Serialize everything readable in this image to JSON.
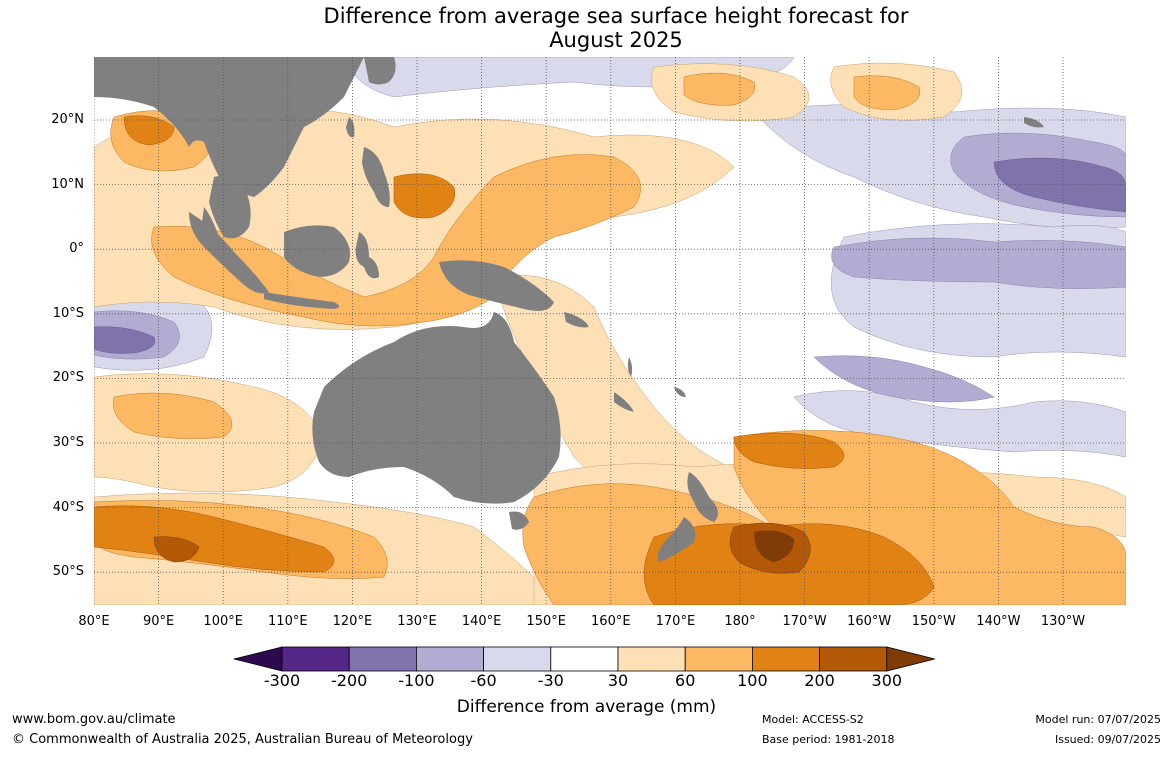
{
  "title_line1": "Difference from average sea surface height forecast for",
  "title_line2": "August 2025",
  "latitudes": [
    "20°N",
    "10°N",
    "0°",
    "10°S",
    "20°S",
    "30°S",
    "40°S",
    "50°S"
  ],
  "longitudes": [
    "80°E",
    "90°E",
    "100°E",
    "110°E",
    "120°E",
    "130°E",
    "140°E",
    "150°E",
    "160°E",
    "170°E",
    "180°",
    "170°W",
    "160°W",
    "150°W",
    "140°W",
    "130°W"
  ],
  "colorbar": {
    "title": "Difference from average (mm)",
    "ticks": [
      "-300",
      "-200",
      "-100",
      "-60",
      "-30",
      "30",
      "60",
      "100",
      "200",
      "300"
    ],
    "colors": [
      "#2d0a4e",
      "#542788",
      "#8073ac",
      "#b2abd2",
      "#d8daeb",
      "#ffffff",
      "#fee0b6",
      "#fdb863",
      "#e08214",
      "#b35806",
      "#7f3b08"
    ]
  },
  "map_data": {
    "type": "filled-contour-map",
    "variable": "Sea surface height anomaly",
    "units": "mm",
    "region": {
      "lon_range": [
        "80°E",
        "130°W"
      ],
      "lat_range": [
        "55°S",
        "30°N"
      ]
    },
    "land_color": "#808080",
    "grid": true,
    "features": [
      {
        "area": "Southern Ocean east of New Zealand (45°S, 175°W)",
        "value_range_mm": [
          200,
          300
        ]
      },
      {
        "area": "Tasman Sea and south-west Pacific",
        "value_range_mm": [
          60,
          200
        ]
      },
      {
        "area": "Maritime Continent / western tropical Pacific",
        "value_range_mm": [
          30,
          200
        ]
      },
      {
        "area": "Southern Indian Ocean band near 45°S",
        "value_range_mm": [
          60,
          200
        ]
      },
      {
        "area": "Central and eastern tropical North Pacific (10°N, 140°W)",
        "value_range_mm": [
          -200,
          -30
        ]
      },
      {
        "area": "Eastern Indian Ocean near 15°S, 85°E",
        "value_range_mm": [
          -200,
          -60
        ]
      },
      {
        "area": "Equatorial central Pacific",
        "value_range_mm": [
          -60,
          -30
        ]
      }
    ]
  },
  "footer": {
    "website": "www.bom.gov.au/climate",
    "copyright": "© Commonwealth of Australia 2025, Australian Bureau of Meteorology",
    "model": "Model: ACCESS-S2",
    "base_period": "Base period: 1981-2018",
    "model_run": "Model run: 07/07/2025",
    "issued": "Issued: 09/07/2025"
  }
}
